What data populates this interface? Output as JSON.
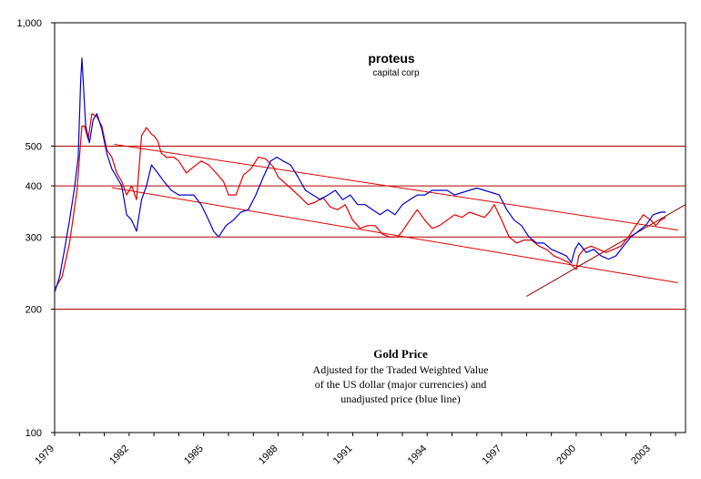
{
  "chart_data": {
    "type": "line",
    "y_scale": "log",
    "ylim": [
      100,
      1000
    ],
    "y_ticks": [
      {
        "value": 100,
        "label": "100"
      },
      {
        "value": 200,
        "label": "200"
      },
      {
        "value": 300,
        "label": "300"
      },
      {
        "value": 400,
        "label": "400"
      },
      {
        "value": 500,
        "label": "500"
      },
      {
        "value": 1000,
        "label": "1,000"
      }
    ],
    "gridlines": [
      200,
      300,
      400,
      500
    ],
    "xlim": [
      1979.0,
      2004.4
    ],
    "x_ticks": [
      "1979",
      "1982",
      "1985",
      "1988",
      "1991",
      "1994",
      "1997",
      "2000",
      "2003"
    ],
    "brand": {
      "name": "proteus",
      "sub": "capital corp"
    },
    "annotation": [
      "Gold Price",
      "Adjusted for the Traded Weighted Value",
      "of the US dollar (major currencies) and",
      "unadjusted price (blue line)"
    ],
    "colors": {
      "adjusted": "#e00000",
      "unadjusted": "#0000cc",
      "grid": "#b00000",
      "trend": "#e00000",
      "trend_dark": "#8b0000"
    },
    "series": [
      {
        "key": "adjusted",
        "x": [
          1979.0,
          1979.3,
          1979.6,
          1979.9,
          1980.0,
          1980.1,
          1980.2,
          1980.35,
          1980.5,
          1980.7,
          1980.9,
          1981.1,
          1981.3,
          1981.5,
          1981.7,
          1981.9,
          1982.1,
          1982.3,
          1982.5,
          1982.7,
          1982.9,
          1983.0,
          1983.15,
          1983.3,
          1983.5,
          1983.8,
          1984.0,
          1984.3,
          1984.6,
          1984.9,
          1985.2,
          1985.5,
          1985.8,
          1986.0,
          1986.3,
          1986.6,
          1986.9,
          1987.2,
          1987.5,
          1987.8,
          1988.0,
          1988.3,
          1988.6,
          1988.9,
          1989.2,
          1989.5,
          1989.8,
          1990.1,
          1990.4,
          1990.7,
          1991.0,
          1991.3,
          1991.6,
          1991.9,
          1992.2,
          1992.5,
          1992.8,
          1993.0,
          1993.3,
          1993.6,
          1993.9,
          1994.2,
          1994.5,
          1994.8,
          1995.1,
          1995.4,
          1995.7,
          1996.0,
          1996.3,
          1996.5,
          1996.7,
          1997.0,
          1997.3,
          1997.6,
          1997.9,
          1998.2,
          1998.5,
          1998.8,
          1999.1,
          1999.4,
          1999.7,
          1999.85,
          2000.0,
          2000.1,
          2000.3,
          2000.6,
          2000.9,
          2001.2,
          2001.5,
          2001.8,
          2002.1,
          2002.4,
          2002.7,
          2003.0,
          2003.2,
          2003.4,
          2003.6
        ],
        "y": [
          224,
          240,
          290,
          390,
          470,
          560,
          560,
          520,
          600,
          590,
          560,
          490,
          470,
          430,
          410,
          380,
          400,
          370,
          530,
          555,
          535,
          530,
          515,
          480,
          470,
          470,
          460,
          430,
          445,
          460,
          450,
          430,
          410,
          380,
          380,
          425,
          440,
          470,
          465,
          445,
          420,
          405,
          390,
          375,
          360,
          365,
          375,
          355,
          350,
          360,
          330,
          315,
          320,
          320,
          305,
          300,
          300,
          310,
          330,
          350,
          330,
          315,
          320,
          330,
          340,
          335,
          345,
          340,
          335,
          345,
          360,
          330,
          300,
          290,
          295,
          295,
          285,
          280,
          270,
          265,
          260,
          255,
          250,
          270,
          280,
          285,
          280,
          275,
          280,
          285,
          300,
          320,
          340,
          330,
          320,
          330,
          335
        ]
      },
      {
        "key": "unadjusted",
        "x": [
          1979.0,
          1979.2,
          1979.4,
          1979.6,
          1979.8,
          1979.95,
          1980.05,
          1980.1,
          1980.25,
          1980.4,
          1980.55,
          1980.7,
          1980.9,
          1981.1,
          1981.3,
          1981.5,
          1981.7,
          1981.9,
          1982.1,
          1982.3,
          1982.5,
          1982.7,
          1982.9,
          1983.15,
          1983.4,
          1983.7,
          1984.0,
          1984.3,
          1984.6,
          1984.9,
          1985.2,
          1985.4,
          1985.6,
          1985.9,
          1986.2,
          1986.5,
          1986.8,
          1987.1,
          1987.4,
          1987.7,
          1987.95,
          1988.2,
          1988.5,
          1988.8,
          1989.1,
          1989.4,
          1989.7,
          1990.0,
          1990.3,
          1990.6,
          1990.9,
          1991.2,
          1991.5,
          1991.8,
          1992.1,
          1992.4,
          1992.7,
          1993.0,
          1993.3,
          1993.6,
          1993.9,
          1994.2,
          1994.5,
          1994.8,
          1995.1,
          1995.4,
          1995.7,
          1996.0,
          1996.3,
          1996.6,
          1996.9,
          1997.2,
          1997.5,
          1997.8,
          1998.1,
          1998.4,
          1998.7,
          1999.0,
          1999.3,
          1999.6,
          1999.8,
          1999.95,
          2000.1,
          2000.4,
          2000.7,
          2001.0,
          2001.3,
          2001.6,
          2001.9,
          2002.2,
          2002.5,
          2002.8,
          2003.1,
          2003.4,
          2003.6
        ],
        "y": [
          220,
          240,
          280,
          330,
          395,
          470,
          720,
          820,
          560,
          510,
          580,
          600,
          550,
          480,
          440,
          420,
          400,
          340,
          330,
          310,
          370,
          400,
          450,
          430,
          410,
          390,
          380,
          380,
          380,
          360,
          330,
          310,
          300,
          320,
          330,
          345,
          350,
          380,
          420,
          460,
          470,
          460,
          450,
          420,
          390,
          380,
          370,
          380,
          390,
          370,
          380,
          360,
          360,
          350,
          340,
          350,
          340,
          360,
          370,
          380,
          380,
          390,
          390,
          390,
          380,
          385,
          390,
          395,
          390,
          385,
          380,
          350,
          330,
          320,
          300,
          290,
          290,
          280,
          275,
          270,
          260,
          280,
          290,
          275,
          280,
          270,
          265,
          270,
          285,
          300,
          310,
          320,
          340,
          345,
          345
        ]
      }
    ],
    "trend_lines": [
      {
        "key": "upper-channel",
        "x": [
          1981.4,
          2004.1
        ],
        "y": [
          505,
          312
        ],
        "color": "trend"
      },
      {
        "key": "lower-channel",
        "x": [
          1981.3,
          2004.1
        ],
        "y": [
          396,
          232
        ],
        "color": "trend"
      },
      {
        "key": "support",
        "x": [
          1998.0,
          2004.4
        ],
        "y": [
          215,
          360
        ],
        "color": "trend_dark"
      }
    ]
  }
}
